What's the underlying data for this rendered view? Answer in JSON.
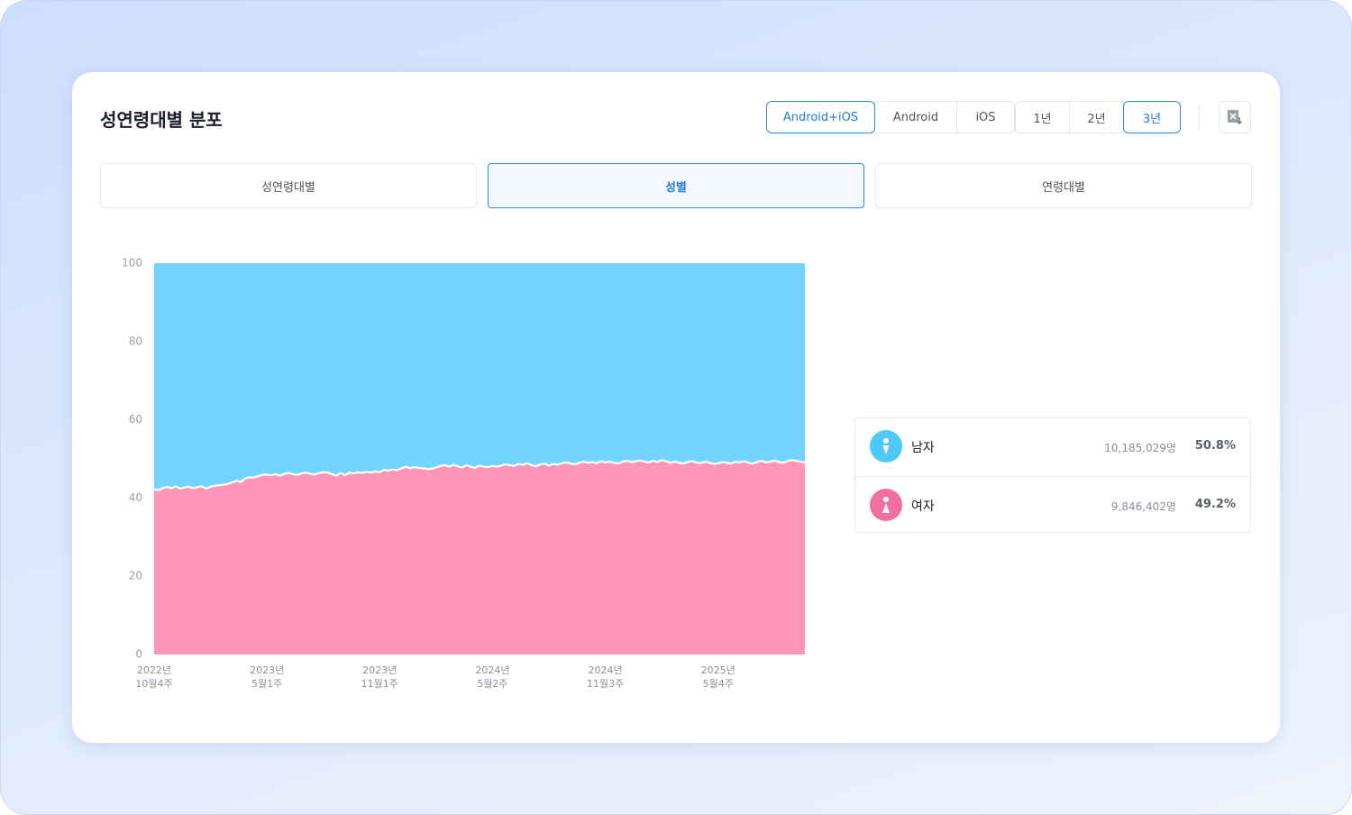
{
  "header": {
    "title": "성연령대별 분포"
  },
  "filters": {
    "platform": [
      "Android+iOS",
      "Android",
      "iOS"
    ],
    "period": [
      "1년",
      "2년",
      "3년"
    ]
  },
  "tabs": [
    "성연령대별",
    "성별",
    "연령대별"
  ],
  "chart_data": {
    "type": "stacked-area",
    "categories": [
      "2022년\n10월4주",
      null,
      null,
      null,
      null,
      null,
      null,
      null,
      null,
      null,
      null,
      null,
      null,
      null,
      null,
      null,
      null,
      null,
      null,
      null,
      null,
      null,
      null,
      null,
      null,
      null,
      "2023년\n5월1주",
      null,
      null,
      null,
      null,
      null,
      null,
      null,
      null,
      null,
      null,
      null,
      null,
      null,
      null,
      null,
      null,
      null,
      null,
      null,
      null,
      null,
      null,
      null,
      null,
      null,
      "2023년\n11월1주",
      null,
      null,
      null,
      null,
      null,
      null,
      null,
      null,
      null,
      null,
      null,
      null,
      null,
      null,
      null,
      null,
      null,
      null,
      null,
      null,
      null,
      null,
      null,
      null,
      null,
      "2024년\n5월2주",
      null,
      null,
      null,
      null,
      null,
      null,
      null,
      null,
      null,
      null,
      null,
      null,
      null,
      null,
      null,
      null,
      null,
      null,
      null,
      null,
      null,
      null,
      null,
      null,
      null,
      "2024년\n11월3주",
      null,
      null,
      null,
      null,
      null,
      null,
      null,
      null,
      null,
      null,
      null,
      null,
      null,
      null,
      null,
      null,
      null,
      null,
      null,
      null,
      null,
      null,
      null,
      null,
      null,
      "2025년\n5월4주",
      null,
      null,
      null,
      null,
      null,
      null,
      null,
      null,
      null,
      null,
      null,
      null,
      null,
      null,
      null,
      null,
      null,
      null,
      null,
      null
    ],
    "series": [
      {
        "name": "여자",
        "color": "#ff95b8",
        "total": "9,846,402명",
        "share": "49.2%",
        "values": [
          42.2,
          42.0,
          42.6,
          42.8,
          42.5,
          43.0,
          42.4,
          42.7,
          42.9,
          42.5,
          42.8,
          43.0,
          42.4,
          42.9,
          43.1,
          43.3,
          43.4,
          43.6,
          44.0,
          44.4,
          44.1,
          45.0,
          45.3,
          45.2,
          45.6,
          45.9,
          46.0,
          45.8,
          46.1,
          45.7,
          46.2,
          46.4,
          46.1,
          45.9,
          46.3,
          46.5,
          46.2,
          46.0,
          46.4,
          46.6,
          46.5,
          46.1,
          45.7,
          46.4,
          45.8,
          46.5,
          46.3,
          46.6,
          46.4,
          46.7,
          46.5,
          46.8,
          46.6,
          47.2,
          47.0,
          47.3,
          47.1,
          47.6,
          48.0,
          47.6,
          47.9,
          47.7,
          47.6,
          47.4,
          47.5,
          47.8,
          48.2,
          48.4,
          48.0,
          48.5,
          48.1,
          47.8,
          48.4,
          48.0,
          47.7,
          48.3,
          48.0,
          47.9,
          48.2,
          48.0,
          48.3,
          48.6,
          48.4,
          48.2,
          48.7,
          48.5,
          48.9,
          48.4,
          48.1,
          48.6,
          48.8,
          48.3,
          48.7,
          48.5,
          48.9,
          49.1,
          48.8,
          48.6,
          49.0,
          49.3,
          49.0,
          49.2,
          48.9,
          49.4,
          49.1,
          49.3,
          49.0,
          48.8,
          49.3,
          49.5,
          49.2,
          49.4,
          49.6,
          49.3,
          49.1,
          49.5,
          49.2,
          49.7,
          49.4,
          49.0,
          49.3,
          49.0,
          48.8,
          49.2,
          49.4,
          49.1,
          48.9,
          49.3,
          49.0,
          48.7,
          48.9,
          49.2,
          49.0,
          48.8,
          49.3,
          49.1,
          49.4,
          49.0,
          48.8,
          49.2,
          49.5,
          49.1,
          49.3,
          49.6,
          49.2,
          49.0,
          49.4,
          49.7,
          49.5,
          49.3,
          49.1
        ]
      },
      {
        "name": "남자",
        "color": "#72d4ff",
        "total": "10,185,029명",
        "share": "50.8%",
        "values": [
          57.8,
          58.0,
          57.4,
          57.2,
          57.5,
          57.0,
          57.6,
          57.3,
          57.1,
          57.5,
          57.2,
          57.0,
          57.6,
          57.1,
          56.9,
          56.7,
          56.6,
          56.4,
          56.0,
          55.6,
          55.9,
          55.0,
          54.7,
          54.8,
          54.4,
          54.1,
          54.0,
          54.2,
          53.9,
          54.3,
          53.8,
          53.6,
          53.9,
          54.1,
          53.7,
          53.5,
          53.8,
          54.0,
          53.6,
          53.4,
          53.5,
          53.9,
          54.3,
          53.6,
          54.2,
          53.5,
          53.7,
          53.4,
          53.6,
          53.3,
          53.5,
          53.2,
          53.4,
          52.8,
          53.0,
          52.7,
          52.9,
          52.4,
          52.0,
          52.4,
          52.1,
          52.3,
          52.4,
          52.6,
          52.5,
          52.2,
          51.8,
          51.6,
          52.0,
          51.5,
          51.9,
          52.2,
          51.6,
          52.0,
          52.3,
          51.7,
          52.0,
          52.1,
          51.8,
          52.0,
          51.7,
          51.4,
          51.6,
          51.8,
          51.3,
          51.5,
          51.1,
          51.6,
          51.9,
          51.4,
          51.2,
          51.7,
          51.3,
          51.5,
          51.1,
          50.9,
          51.2,
          51.4,
          51.0,
          50.7,
          51.0,
          50.8,
          51.1,
          50.6,
          50.9,
          50.7,
          51.0,
          51.2,
          50.7,
          50.5,
          50.8,
          50.6,
          50.4,
          50.7,
          50.9,
          50.5,
          50.8,
          50.3,
          50.6,
          51.0,
          50.7,
          51.0,
          51.2,
          50.8,
          50.6,
          50.9,
          51.1,
          50.7,
          51.0,
          51.3,
          51.1,
          50.8,
          51.0,
          51.2,
          50.7,
          50.9,
          50.6,
          51.0,
          51.2,
          50.8,
          50.5,
          50.9,
          50.7,
          50.4,
          50.8,
          51.0,
          50.6,
          50.3,
          50.5,
          50.7,
          50.9
        ]
      }
    ],
    "ylim": [
      0,
      100
    ],
    "yticks": [
      0,
      20,
      40,
      60,
      80,
      100
    ],
    "grid": false
  }
}
